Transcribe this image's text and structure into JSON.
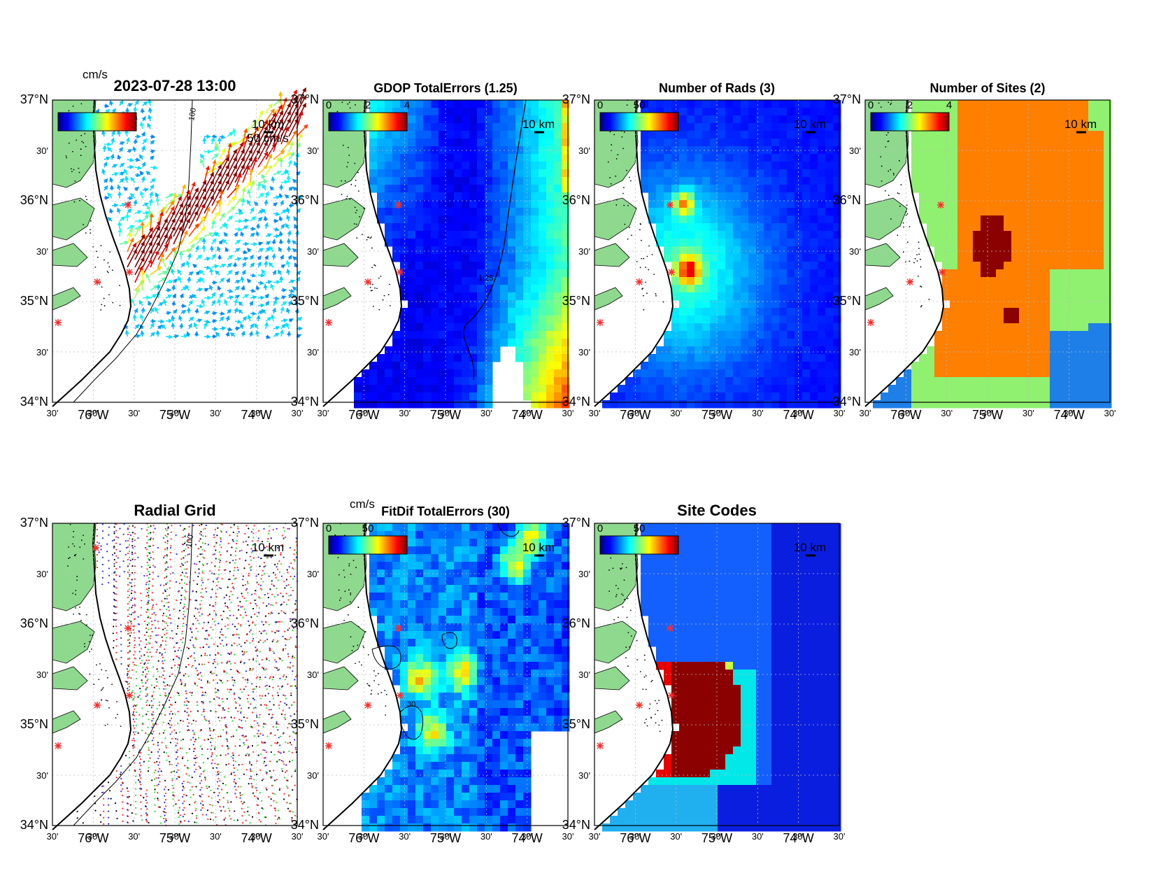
{
  "figure": {
    "timestamp": "2023-07-28 13:00",
    "axis_labels": {
      "lat_major": [
        "37°N",
        "36°N",
        "35°N",
        "34°N"
      ],
      "lat_minor": "30'",
      "lon_major": [
        "76°W",
        "75°W",
        "74°W"
      ],
      "lon_minor": "30'"
    },
    "scale_label": "10 km",
    "colors": {
      "land": "#8fd98f",
      "coast": "#000000",
      "site_marker": "#ff2a2a",
      "grid": "#bbbbbb"
    },
    "panels": [
      {
        "id": "currents",
        "title": "",
        "cbar_unit": "cm/s",
        "cbar_ticks": [],
        "vector_label": "50 cm/s",
        "contour_label": "100",
        "kind": "vectors"
      },
      {
        "id": "gdop",
        "title": "GDOP TotalErrors (1.25)",
        "cbar_unit": "",
        "cbar_ticks": [
          "0",
          "2",
          "4"
        ],
        "contour_label": "1.25",
        "kind": "gdop"
      },
      {
        "id": "nrads",
        "title": "Number of Rads (3)",
        "cbar_unit": "",
        "cbar_ticks": [
          "0",
          "50"
        ],
        "contour_label": "3",
        "kind": "nrads"
      },
      {
        "id": "nsites",
        "title": "Number of Sites (2)",
        "cbar_unit": "",
        "cbar_ticks": [
          "0",
          "2",
          "4"
        ],
        "contour_label": "2",
        "kind": "nsites"
      },
      {
        "id": "radial-grid",
        "title": "Radial Grid",
        "cbar_unit": "",
        "cbar_ticks": [],
        "contour_label": "100",
        "kind": "radial"
      },
      {
        "id": "fitdif",
        "title": "FitDif TotalErrors (30)",
        "cbar_unit": "cm/s",
        "cbar_ticks": [
          "0",
          "50"
        ],
        "contour_label": "30",
        "kind": "fitdif"
      },
      {
        "id": "site-codes",
        "title": "Site Codes",
        "cbar_unit": "",
        "cbar_ticks": [
          "0",
          "50"
        ],
        "contour_label": "",
        "kind": "sitecodes"
      }
    ]
  }
}
